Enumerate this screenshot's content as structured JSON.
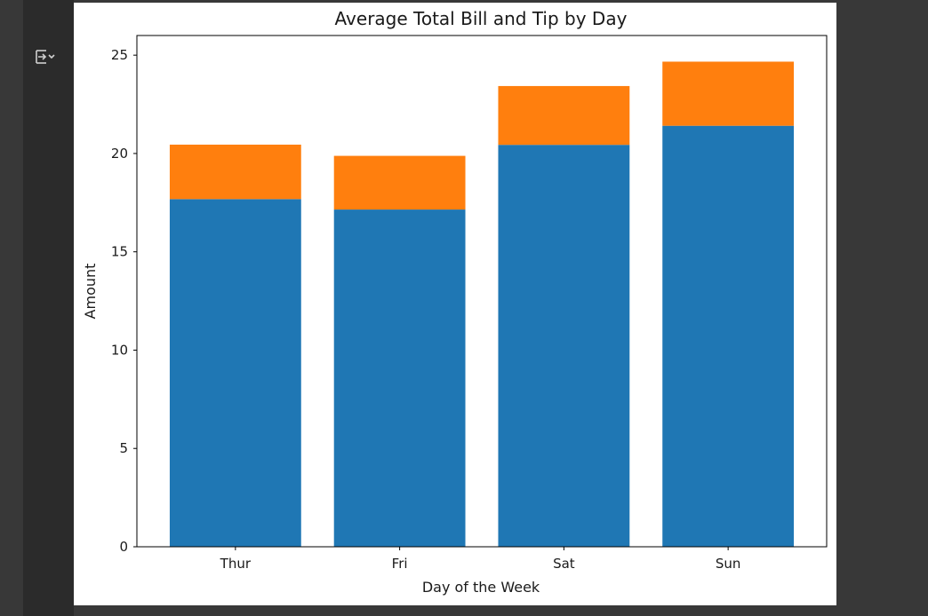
{
  "output_cell": {
    "toggle_icon": "output-toggle-icon"
  },
  "chart_data": {
    "type": "bar",
    "stacked": true,
    "title": "Average Total Bill and Tip by Day",
    "xlabel": "Day of the Week",
    "ylabel": "Amount",
    "categories": [
      "Thur",
      "Fri",
      "Sat",
      "Sun"
    ],
    "series": [
      {
        "values": [
          17.68,
          17.15,
          20.44,
          21.41
        ],
        "color": "#1f77b4"
      },
      {
        "values": [
          2.77,
          2.73,
          2.99,
          3.26
        ],
        "color": "#ff7f0e"
      }
    ],
    "ylim": [
      0,
      26
    ],
    "yticks": [
      0,
      5,
      10,
      15,
      20,
      25
    ],
    "grid": false
  }
}
